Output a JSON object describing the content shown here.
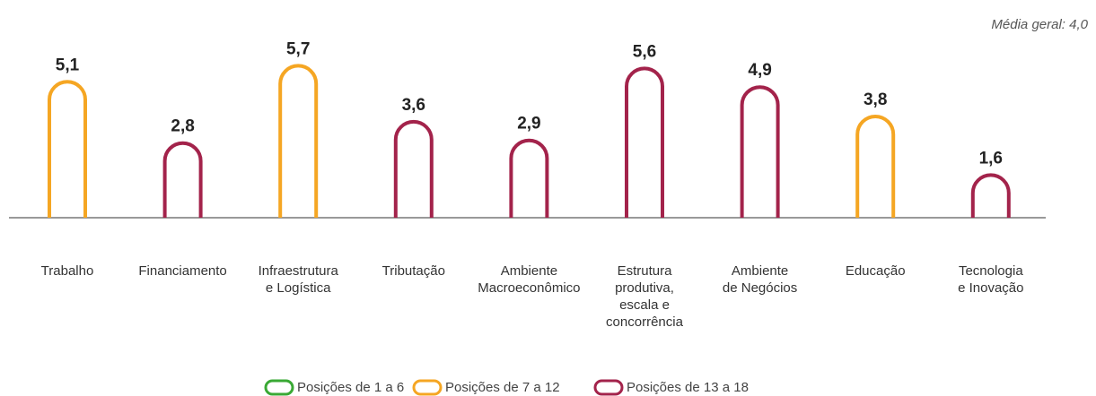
{
  "chart_data": {
    "type": "arch-bar",
    "annotation": "Média geral: 4,0",
    "categories": [
      "Trabalho",
      "Financiamento",
      "Infraestrutura\ne Logística",
      "Tributação",
      "Ambiente\nMacroeconômico",
      "Estrutura\nprodutiva,\nescala e\nconcorrência",
      "Ambiente\nde Negócios",
      "Educação",
      "Tecnologia\ne Inovação"
    ],
    "values": [
      5.1,
      2.8,
      5.7,
      3.6,
      2.9,
      5.6,
      4.9,
      3.8,
      1.6
    ],
    "value_labels": [
      "5,1",
      "2,8",
      "5,7",
      "3,6",
      "2,9",
      "5,6",
      "4,9",
      "3,8",
      "1,6"
    ],
    "colors": [
      "#f5a623",
      "#a3234b",
      "#f5a623",
      "#a3234b",
      "#a3234b",
      "#a3234b",
      "#a3234b",
      "#f5a623",
      "#a3234b"
    ],
    "ylim": [
      0,
      8
    ],
    "legend": [
      {
        "name": "Posições de 1 a 6",
        "color": "#3aa935"
      },
      {
        "name": "Posições de 7 a 12",
        "color": "#f5a623"
      },
      {
        "name": "Posições de 13 a 18",
        "color": "#a3234b"
      }
    ]
  }
}
